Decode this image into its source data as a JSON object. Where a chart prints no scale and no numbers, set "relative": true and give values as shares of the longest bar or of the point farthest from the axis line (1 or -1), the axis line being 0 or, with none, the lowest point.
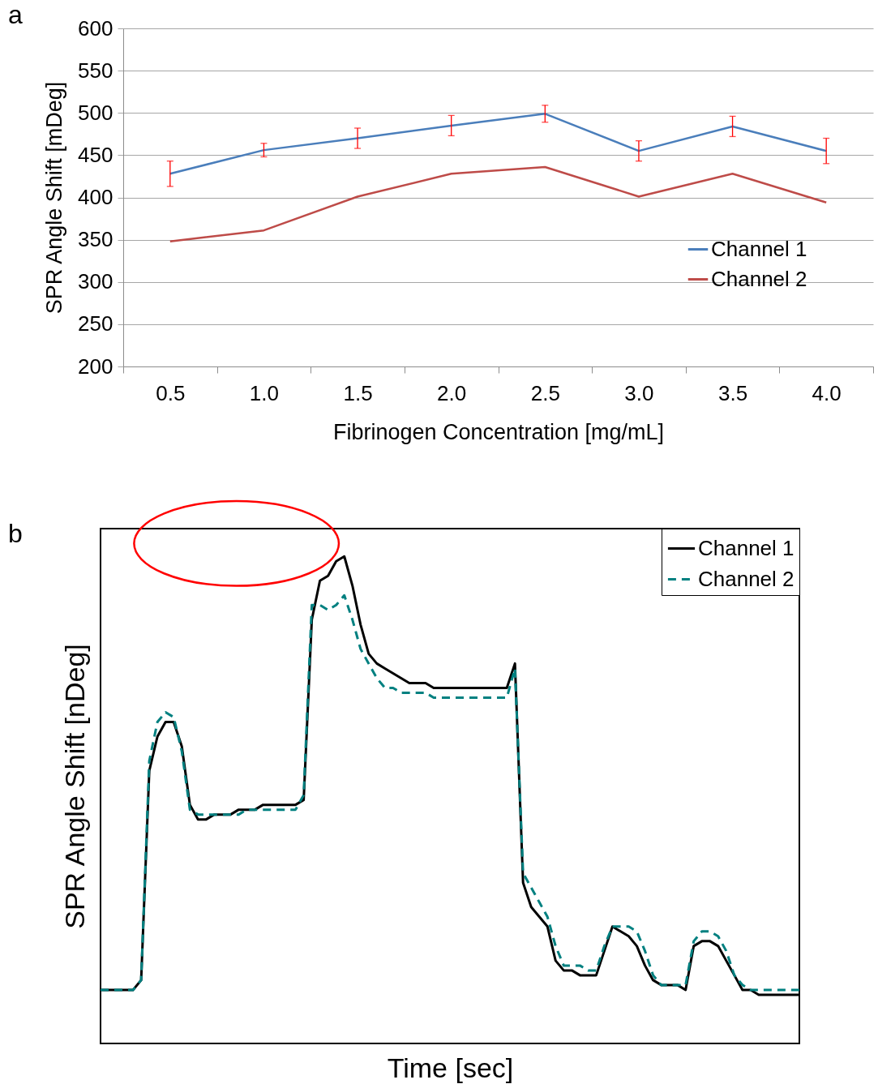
{
  "chart_data": [
    {
      "type": "line",
      "annotations": [
        "a"
      ],
      "xlabel": "Fibrinogen Concentration [mg/mL]",
      "ylabel": "SPR Angle Shift [mDeg]",
      "categories": [
        "0.5",
        "1.0",
        "1.5",
        "2.0",
        "2.5",
        "3.0",
        "3.5",
        "4.0"
      ],
      "series": [
        {
          "name": "Channel 1",
          "color": "#4a7ebb",
          "values": [
            428,
            456,
            470,
            485,
            499,
            455,
            484,
            455
          ],
          "errors": [
            15,
            8,
            12,
            12,
            10,
            12,
            12,
            15
          ]
        },
        {
          "name": "Channel 2",
          "color": "#be4b48",
          "values": [
            348,
            361,
            401,
            428,
            436,
            401,
            428,
            394
          ]
        }
      ],
      "ylim": [
        200,
        600
      ],
      "yticks": [
        200,
        250,
        300,
        350,
        400,
        450,
        500,
        550,
        600
      ],
      "grid": "y",
      "legend": "right"
    },
    {
      "type": "line",
      "annotations": [
        "b"
      ],
      "xlabel": "Time [sec]",
      "ylabel": "SPR Angle Shift [nDeg]",
      "relative": true,
      "legend": "top right",
      "categories": [
        null,
        null,
        null,
        null,
        null,
        null,
        null,
        null,
        null,
        null,
        null,
        null,
        null,
        null,
        null,
        null,
        null,
        null,
        null,
        null,
        null,
        null,
        null,
        null,
        null,
        null,
        null,
        null,
        null,
        null,
        null,
        null,
        null,
        null,
        null,
        null,
        null,
        null,
        null,
        null,
        null,
        null,
        null,
        null,
        null,
        null,
        null,
        null,
        null,
        null,
        null,
        null,
        null,
        null,
        null,
        null,
        null,
        null,
        null,
        null,
        null,
        null,
        null,
        null,
        null,
        null,
        null,
        null,
        null,
        null,
        null,
        null,
        null,
        null,
        null,
        null,
        null,
        null,
        null,
        null,
        null,
        null,
        null,
        null,
        null,
        null,
        null
      ],
      "series": [
        {
          "name": "Channel 1",
          "color": "#000000",
          "line_style": "solid",
          "values": [
            0.11,
            0.11,
            0.11,
            0.11,
            0.11,
            0.13,
            0.56,
            0.63,
            0.66,
            0.66,
            0.61,
            0.49,
            0.46,
            0.46,
            0.47,
            0.47,
            0.47,
            0.48,
            0.48,
            0.48,
            0.49,
            0.49,
            0.49,
            0.49,
            0.49,
            0.5,
            0.87,
            0.95,
            0.96,
            0.99,
            1,
            0.94,
            0.86,
            0.8,
            0.78,
            0.77,
            0.76,
            0.75,
            0.74,
            0.74,
            0.74,
            0.73,
            0.73,
            0.73,
            0.73,
            0.73,
            0.73,
            0.73,
            0.73,
            0.73,
            0.73,
            0.78,
            0.33,
            0.28,
            0.26,
            0.24,
            0.17,
            0.15,
            0.15,
            0.14,
            0.14,
            0.14,
            0.19,
            0.24,
            0.23,
            0.22,
            0.2,
            0.16,
            0.13,
            0.12,
            0.12,
            0.12,
            0.11,
            0.2,
            0.21,
            0.21,
            0.2,
            0.17,
            0.14,
            0.11,
            0.11,
            0.1,
            0.1,
            0.1,
            0.1,
            0.1,
            0.1
          ]
        },
        {
          "name": "Channel 2",
          "color": "#008080",
          "line_style": "dashed",
          "values": [
            0.11,
            0.11,
            0.11,
            0.11,
            0.11,
            0.13,
            0.58,
            0.66,
            0.68,
            0.67,
            0.6,
            0.48,
            0.47,
            0.47,
            0.47,
            0.47,
            0.47,
            0.47,
            0.48,
            0.48,
            0.48,
            0.48,
            0.48,
            0.48,
            0.48,
            0.51,
            0.9,
            0.9,
            0.89,
            0.9,
            0.92,
            0.87,
            0.81,
            0.78,
            0.75,
            0.73,
            0.73,
            0.72,
            0.72,
            0.72,
            0.72,
            0.71,
            0.71,
            0.71,
            0.71,
            0.71,
            0.71,
            0.71,
            0.71,
            0.71,
            0.71,
            0.77,
            0.35,
            0.32,
            0.29,
            0.26,
            0.2,
            0.16,
            0.16,
            0.16,
            0.15,
            0.15,
            0.2,
            0.24,
            0.24,
            0.24,
            0.23,
            0.19,
            0.14,
            0.12,
            0.12,
            0.12,
            0.12,
            0.21,
            0.23,
            0.23,
            0.22,
            0.19,
            0.14,
            0.12,
            0.11,
            0.11,
            0.11,
            0.11,
            0.11,
            0.11,
            0.11
          ]
        }
      ]
    }
  ]
}
